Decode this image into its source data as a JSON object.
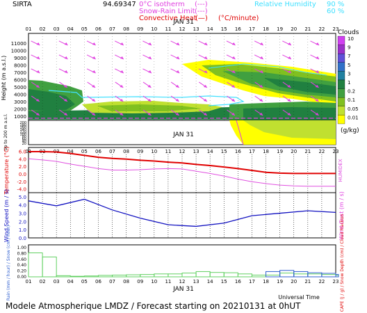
{
  "header": {
    "station": "SIRTA",
    "coords": "94.69347",
    "legend_isotherm": "0°C isotherm",
    "legend_snow_rain": "Snow-Rain Limit",
    "legend_convective": "Convective Heat",
    "legend_convective_unit": "(°C/minute)",
    "legend_rh": "Relative Humidity",
    "rh_90": "90 %",
    "rh_60": "60 %",
    "dash_marker": "(---)",
    "solid_marker": "(—)"
  },
  "date_label": "JAN 31",
  "hours": [
    "01",
    "02",
    "03",
    "04",
    "05",
    "06",
    "07",
    "08",
    "09",
    "10",
    "11",
    "12",
    "13",
    "14",
    "15",
    "16",
    "17",
    "18",
    "19",
    "20",
    "21",
    "22",
    "23"
  ],
  "footer": {
    "title": "Modele Atmospherique LMDZ / Forecast starting on 20210131 at 0hUT",
    "universal_time": "Universal Time"
  },
  "clouds_scale": {
    "title": "Clouds",
    "unit": "(g/kg)",
    "levels": [
      "10",
      "9",
      "7",
      "5",
      "3",
      "1",
      "0.2",
      "0.1",
      "0.05",
      "0.01"
    ],
    "colors": [
      "#d040f0",
      "#9a30c8",
      "#6050d8",
      "#3070c8",
      "#2080a0",
      "#208040",
      "#40a040",
      "#80c020",
      "#c0e030",
      "#ffff00"
    ]
  },
  "colors": {
    "temperature": "#e00000",
    "humidex": "#e050e0",
    "wind_speed": "#1010c0",
    "wind_arrow": "#e040e0",
    "rain": "#60d060",
    "snow": "#3060d0",
    "isotherm": "#e040e0",
    "rh": "#40e0ff"
  },
  "chart_data": [
    {
      "type": "heatmap",
      "title": "Clouds",
      "ylabel": "Height (m a.s.l.)",
      "y_ticks": [
        "11000",
        "10000",
        "9000",
        "8000",
        "7000",
        "6000",
        "5000",
        "4000",
        "3000",
        "2000",
        "1000"
      ],
      "ylim": [
        0,
        11500
      ]
    },
    {
      "type": "heatmap",
      "ylabel": "Up to 200 m a.s.l.",
      "y_ticks": [
        "200",
        "180",
        "160",
        "140",
        "120",
        "100",
        "80",
        "60",
        "40",
        "20"
      ]
    },
    {
      "type": "line",
      "ylabel": "Temperature (°C)",
      "ylabel_right": "HUMIDEX",
      "y_ticks": [
        "6.0",
        "4.0",
        "2.0",
        "0.0",
        "-2.0",
        "-4.0"
      ],
      "ylim": [
        -5,
        7
      ],
      "x": [
        1,
        2,
        3,
        4,
        5,
        6,
        7,
        8,
        9,
        10,
        11,
        12,
        13,
        14,
        15,
        16,
        17,
        18,
        19,
        20,
        21,
        22,
        23
      ],
      "series": [
        {
          "name": "Temperature",
          "values": [
            5.9,
            5.9,
            5.8,
            5.4,
            4.9,
            4.4,
            4.1,
            3.9,
            3.6,
            3.4,
            3.1,
            2.9,
            2.5,
            2.2,
            1.8,
            1.4,
            0.9,
            0.4,
            0.2,
            0.1,
            0.1,
            0.1,
            0.1
          ]
        },
        {
          "name": "HUMIDEX",
          "values": [
            4.0,
            3.7,
            3.3,
            2.6,
            2.0,
            1.4,
            1.0,
            1.0,
            1.1,
            1.3,
            1.4,
            1.3,
            0.7,
            0.1,
            -0.6,
            -1.4,
            -2.1,
            -2.6,
            -3.0,
            -3.2,
            -3.3,
            -3.3,
            -3.3
          ]
        }
      ]
    },
    {
      "type": "line",
      "ylabel": "Wind Speed (m / s)",
      "ylabel_right": "Wind Gust (m / s)",
      "y_ticks": [
        "5.0",
        "4.0",
        "3.0",
        "2.0",
        "1.0",
        "0.0"
      ],
      "ylim": [
        0,
        5.5
      ],
      "x": [
        1,
        3,
        5,
        7,
        9,
        11,
        13,
        15,
        17,
        19,
        21,
        23
      ],
      "series": [
        {
          "name": "Wind Speed",
          "values": [
            4.5,
            3.9,
            4.7,
            3.4,
            2.4,
            1.6,
            1.4,
            1.8,
            2.7,
            3.0,
            3.3,
            3.1
          ]
        }
      ]
    },
    {
      "type": "bar",
      "ylabel": "Rain (mm / hour) / Snow (cm / hour)",
      "ylabel_right": "CAPE (J / g) / Snow Depth (cm) / Cloud Fraction",
      "y_ticks": [
        "1.00",
        "0.80",
        "0.60",
        "0.40",
        "0.20",
        "0.00"
      ],
      "ylim": [
        0,
        1.0
      ],
      "categories": [
        "01",
        "02",
        "03",
        "04",
        "05",
        "06",
        "07",
        "08",
        "09",
        "10",
        "11",
        "12",
        "13",
        "14",
        "15",
        "16",
        "17",
        "18",
        "19",
        "20",
        "21",
        "22",
        "23"
      ],
      "series": [
        {
          "name": "Rain",
          "values": [
            0.82,
            0.68,
            0.04,
            0.02,
            0.03,
            0.05,
            0.06,
            0.07,
            0.08,
            0.1,
            0.1,
            0.13,
            0.18,
            0.15,
            0.14,
            0.1,
            0.06,
            0.06,
            0.13,
            0.1,
            0.1,
            0.08,
            0.05
          ]
        },
        {
          "name": "Snow",
          "values": [
            0,
            0,
            0,
            0,
            0,
            0,
            0,
            0,
            0,
            0,
            0,
            0,
            0,
            0,
            0,
            0,
            0,
            0.18,
            0.22,
            0.18,
            0.14,
            0.12,
            0.08
          ]
        }
      ]
    }
  ]
}
